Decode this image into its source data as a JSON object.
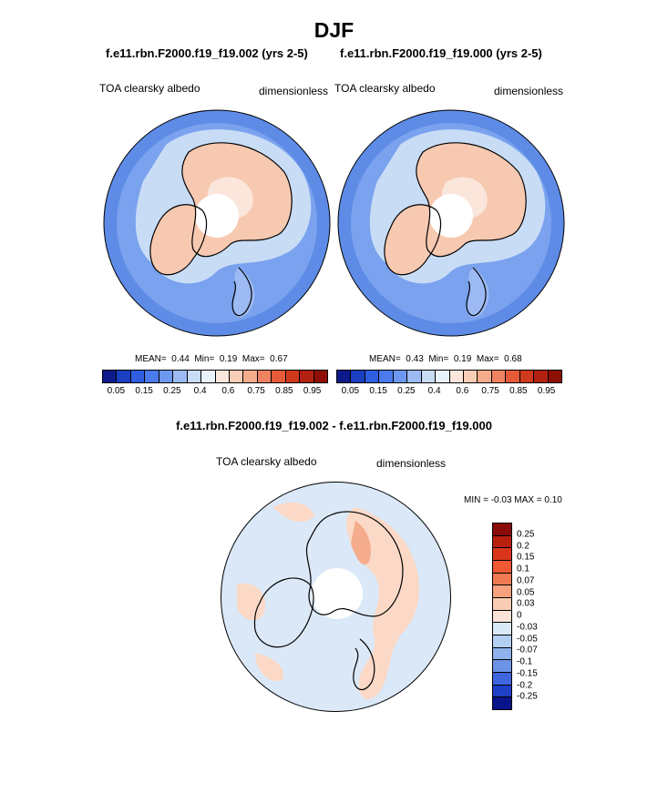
{
  "title": "DJF",
  "panels": [
    {
      "case_title": "f.e11.rbn.F2000.f19_f19.002 (yrs 2-5)",
      "left_label": "TOA clearsky albedo",
      "right_label": "dimensionless",
      "stats": {
        "mean_label": "MEAN=",
        "mean": "0.44",
        "min_label": "Min=",
        "min": "0.19",
        "max_label": "Max=",
        "max": "0.67"
      },
      "colorbar_ticks": [
        "0.05",
        "0.15",
        "0.25",
        "0.4",
        "0.6",
        "0.75",
        "0.85",
        "0.95"
      ]
    },
    {
      "case_title": "f.e11.rbn.F2000.f19_f19.000 (yrs 2-5)",
      "left_label": "TOA clearsky albedo",
      "right_label": "dimensionless",
      "stats": {
        "mean_label": "MEAN=",
        "mean": "0.43",
        "min_label": "Min=",
        "min": "0.19",
        "max_label": "Max=",
        "max": "0.68"
      },
      "colorbar_ticks": [
        "0.05",
        "0.15",
        "0.25",
        "0.4",
        "0.6",
        "0.75",
        "0.85",
        "0.95"
      ]
    }
  ],
  "diff_panel": {
    "title": "f.e11.rbn.F2000.f19_f19.002 - f.e11.rbn.F2000.f19_f19.000",
    "left_label": "TOA clearsky albedo",
    "right_label": "dimensionless",
    "minmax_text": "MIN =  -0.03 MAX =   0.10",
    "colorbar_ticks": [
      "0.25",
      "0.2",
      "0.15",
      "0.1",
      "0.07",
      "0.05",
      "0.03",
      "0",
      "-0.03",
      "-0.05",
      "-0.07",
      "-0.1",
      "-0.15",
      "-0.2",
      "-0.25"
    ]
  },
  "colors": {
    "abs_scale": [
      "#0c1a8a",
      "#1a3fc0",
      "#2f5ee0",
      "#4a7aeb",
      "#6e98f0",
      "#9dbaf4",
      "#c8dcf6",
      "#eaf2fb",
      "#fbe6dc",
      "#f8cdb5",
      "#f4ac8c",
      "#ef8260",
      "#e55a37",
      "#cf3a1c",
      "#b32210",
      "#8e0f06"
    ],
    "diff_scale": [
      "#8b0a0a",
      "#b8200e",
      "#d9361b",
      "#f05a33",
      "#f07a52",
      "#f6a27e",
      "#f9cdb4",
      "#fbe4d7",
      "#dae9f8",
      "#b3cff2",
      "#8eb3ec",
      "#6b93e6",
      "#3f66df",
      "#1f3fc6",
      "#0a148a"
    ],
    "ocean": "#5d8be6",
    "land": "#f7c9b1",
    "diff_bg": "#dbe8f7",
    "diff_pos": "#fbd9c6"
  }
}
